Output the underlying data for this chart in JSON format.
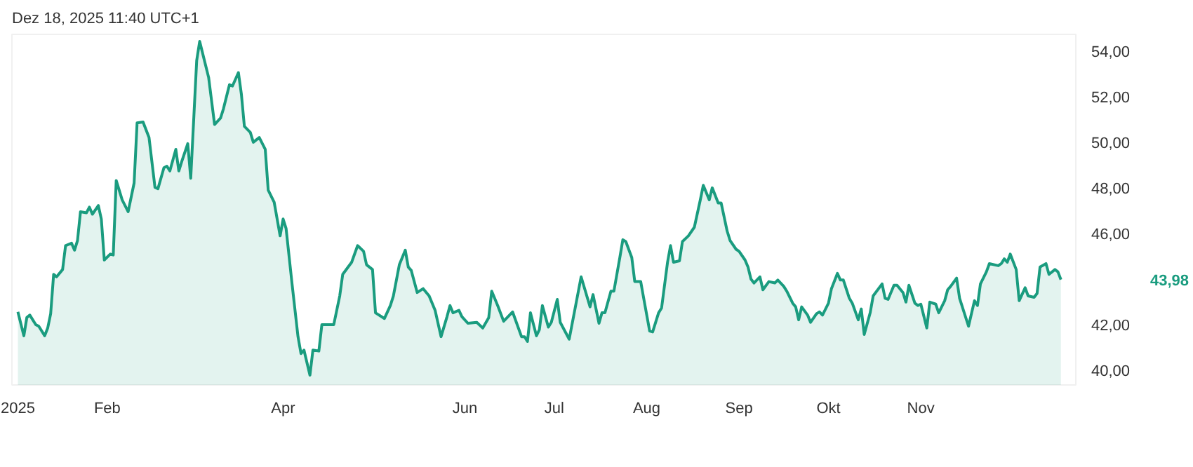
{
  "chart_data": {
    "type": "area",
    "title": "Dez 18, 2025 11:40 UTC+1",
    "x": [
      "2025-01-02",
      "2025-01-04",
      "2025-01-05",
      "2025-01-06",
      "2025-01-08",
      "2025-01-09",
      "2025-01-11",
      "2025-01-12",
      "2025-01-13",
      "2025-01-14",
      "2025-01-15",
      "2025-01-17",
      "2025-01-18",
      "2025-01-20",
      "2025-01-21",
      "2025-01-22",
      "2025-01-23",
      "2025-01-25",
      "2025-01-26",
      "2025-01-27",
      "2025-01-29",
      "2025-01-30",
      "2025-01-31",
      "2025-02-02",
      "2025-02-03",
      "2025-02-04",
      "2025-02-06",
      "2025-02-08",
      "2025-02-10",
      "2025-02-11",
      "2025-02-13",
      "2025-02-15",
      "2025-02-17",
      "2025-02-18",
      "2025-02-20",
      "2025-02-21",
      "2025-02-22",
      "2025-02-24",
      "2025-02-25",
      "2025-02-26",
      "2025-02-28",
      "2025-03-01",
      "2025-03-03",
      "2025-03-04",
      "2025-03-06",
      "2025-03-07",
      "2025-03-09",
      "2025-03-11",
      "2025-03-12",
      "2025-03-14",
      "2025-03-15",
      "2025-03-17",
      "2025-03-18",
      "2025-03-19",
      "2025-03-21",
      "2025-03-22",
      "2025-03-24",
      "2025-03-26",
      "2025-03-27",
      "2025-03-29",
      "2025-03-31",
      "2025-04-01",
      "2025-04-02",
      "2025-04-04",
      "2025-04-06",
      "2025-04-07",
      "2025-04-08",
      "2025-04-10",
      "2025-04-11",
      "2025-04-13",
      "2025-04-14",
      "2025-04-18",
      "2025-04-20",
      "2025-04-21",
      "2025-04-24",
      "2025-04-26",
      "2025-04-28",
      "2025-04-29",
      "2025-05-01",
      "2025-05-02",
      "2025-05-05",
      "2025-05-07",
      "2025-05-08",
      "2025-05-10",
      "2025-05-12",
      "2025-05-13",
      "2025-05-14",
      "2025-05-16",
      "2025-05-18",
      "2025-05-20",
      "2025-05-22",
      "2025-05-24",
      "2025-05-26",
      "2025-05-27",
      "2025-05-28",
      "2025-05-30",
      "2025-05-31",
      "2025-06-02",
      "2025-06-05",
      "2025-06-07",
      "2025-06-09",
      "2025-06-10",
      "2025-06-12",
      "2025-06-14",
      "2025-06-17",
      "2025-06-20",
      "2025-06-21",
      "2025-06-22",
      "2025-06-23",
      "2025-06-25",
      "2025-06-26",
      "2025-06-27",
      "2025-06-29",
      "2025-06-30",
      "2025-07-02",
      "2025-07-03",
      "2025-07-06",
      "2025-07-08",
      "2025-07-10",
      "2025-07-13",
      "2025-07-14",
      "2025-07-16",
      "2025-07-17",
      "2025-07-18",
      "2025-07-20",
      "2025-07-21",
      "2025-07-23",
      "2025-07-24",
      "2025-07-25",
      "2025-07-27",
      "2025-07-28",
      "2025-07-30",
      "2025-07-31",
      "2025-08-02",
      "2025-08-03",
      "2025-08-05",
      "2025-08-06",
      "2025-08-08",
      "2025-08-09",
      "2025-08-10",
      "2025-08-12",
      "2025-08-13",
      "2025-08-15",
      "2025-08-17",
      "2025-08-19",
      "2025-08-20",
      "2025-08-22",
      "2025-08-23",
      "2025-08-25",
      "2025-08-26",
      "2025-08-28",
      "2025-08-29",
      "2025-08-31",
      "2025-09-01",
      "2025-09-03",
      "2025-09-04",
      "2025-09-05",
      "2025-09-06",
      "2025-09-08",
      "2025-09-09",
      "2025-09-11",
      "2025-09-13",
      "2025-09-14",
      "2025-09-16",
      "2025-09-17",
      "2025-09-19",
      "2025-09-20",
      "2025-09-21",
      "2025-09-22",
      "2025-09-24",
      "2025-09-25",
      "2025-09-27",
      "2025-09-28",
      "2025-09-29",
      "2025-10-01",
      "2025-10-02",
      "2025-10-04",
      "2025-10-05",
      "2025-10-06",
      "2025-10-08",
      "2025-10-09",
      "2025-10-11",
      "2025-10-12",
      "2025-10-13",
      "2025-10-15",
      "2025-10-16",
      "2025-10-19",
      "2025-10-20",
      "2025-10-21",
      "2025-10-23",
      "2025-10-24",
      "2025-10-26",
      "2025-10-27",
      "2025-10-28",
      "2025-10-30",
      "2025-10-31",
      "2025-11-01",
      "2025-11-03",
      "2025-11-04",
      "2025-11-06",
      "2025-11-07",
      "2025-11-09",
      "2025-11-10",
      "2025-11-11",
      "2025-11-13",
      "2025-11-14",
      "2025-11-17",
      "2025-11-19",
      "2025-11-20",
      "2025-11-21",
      "2025-11-23",
      "2025-11-24",
      "2025-11-27",
      "2025-11-28",
      "2025-11-29",
      "2025-11-30",
      "2025-12-01",
      "2025-12-03",
      "2025-12-04",
      "2025-12-06",
      "2025-12-07",
      "2025-12-09",
      "2025-12-10",
      "2025-12-11",
      "2025-12-13",
      "2025-12-14",
      "2025-12-16",
      "2025-12-17",
      "2025-12-18"
    ],
    "series": [
      {
        "color": "#1a9c7f",
        "values": [
          42.56,
          41.51,
          42.31,
          42.42,
          42.0,
          41.93,
          41.51,
          41.85,
          42.48,
          44.21,
          44.1,
          44.42,
          45.47,
          45.58,
          45.27,
          45.69,
          46.96,
          46.91,
          47.16,
          46.85,
          47.23,
          46.64,
          44.84,
          45.1,
          45.06,
          48.33,
          47.48,
          46.96,
          48.22,
          50.86,
          50.9,
          50.22,
          48.03,
          47.97,
          48.89,
          48.96,
          48.75,
          49.7,
          48.75,
          49.17,
          49.95,
          48.43,
          53.6,
          54.44,
          53.39,
          52.86,
          50.79,
          51.07,
          51.49,
          52.54,
          52.48,
          53.07,
          52.12,
          50.71,
          50.44,
          50.01,
          50.22,
          49.7,
          47.91,
          47.38,
          45.9,
          46.64,
          46.22,
          43.79,
          41.47,
          40.73,
          40.88,
          39.78,
          40.88,
          40.84,
          42.0,
          42.0,
          43.26,
          44.21,
          44.74,
          45.47,
          45.22,
          44.63,
          44.42,
          42.52,
          42.27,
          42.84,
          43.26,
          44.63,
          45.27,
          44.53,
          44.38,
          43.41,
          43.58,
          43.26,
          42.63,
          41.47,
          42.35,
          42.84,
          42.52,
          42.63,
          42.35,
          42.06,
          42.1,
          41.85,
          42.31,
          43.47,
          42.84,
          42.15,
          42.56,
          41.47,
          41.47,
          41.26,
          42.52,
          41.51,
          41.78,
          42.84,
          41.89,
          42.1,
          43.11,
          42.1,
          41.36,
          42.73,
          44.1,
          42.78,
          43.32,
          42.06,
          42.52,
          42.52,
          43.47,
          43.47,
          44.95,
          45.73,
          45.65,
          44.95,
          43.89,
          43.89,
          43.16,
          41.72,
          41.68,
          42.52,
          42.73,
          44.74,
          45.47,
          44.74,
          44.8,
          45.65,
          45.9,
          46.28,
          47.48,
          48.12,
          47.48,
          48.01,
          47.34,
          47.34,
          46.11,
          45.69,
          45.31,
          45.22,
          44.84,
          44.53,
          44.0,
          43.83,
          44.1,
          43.53,
          43.89,
          43.83,
          43.96,
          43.68,
          43.47,
          42.94,
          42.78,
          42.21,
          42.78,
          42.42,
          42.1,
          42.48,
          42.56,
          42.42,
          42.94,
          43.58,
          44.25,
          43.96,
          43.96,
          43.16,
          42.94,
          42.21,
          42.69,
          41.57,
          42.52,
          43.26,
          43.79,
          43.16,
          43.11,
          43.73,
          43.73,
          43.41,
          42.99,
          43.73,
          42.94,
          42.84,
          42.9,
          41.85,
          42.99,
          42.9,
          42.52,
          43.05,
          43.53,
          43.68,
          44.04,
          43.16,
          41.93,
          43.05,
          42.84,
          43.79,
          44.32,
          44.68,
          44.59,
          44.68,
          44.89,
          44.74,
          45.1,
          44.42,
          43.05,
          43.62,
          43.26,
          43.2,
          43.37,
          44.53,
          44.68,
          44.21,
          44.42,
          44.32,
          43.98
        ]
      }
    ],
    "xlim": [
      "2024-12-31",
      "2025-12-23"
    ],
    "xticks": [
      {
        "value": "2025-01-01",
        "label": "2025"
      },
      {
        "value": "2025-02-01",
        "label": "Feb"
      },
      {
        "value": "2025-04-01",
        "label": "Apr"
      },
      {
        "value": "2025-06-01",
        "label": "Jun"
      },
      {
        "value": "2025-07-01",
        "label": "Jul"
      },
      {
        "value": "2025-08-01",
        "label": "Aug"
      },
      {
        "value": "2025-09-01",
        "label": "Sep"
      },
      {
        "value": "2025-10-01",
        "label": "Okt"
      },
      {
        "value": "2025-11-01",
        "label": "Nov"
      }
    ],
    "ylim": [
      39.35,
      54.75
    ],
    "yticks": [
      {
        "value": 40,
        "label": "40,00"
      },
      {
        "value": 42,
        "label": "42,00"
      },
      {
        "value": 46,
        "label": "46,00"
      },
      {
        "value": 48,
        "label": "48,00"
      },
      {
        "value": 50,
        "label": "50,00"
      },
      {
        "value": 52,
        "label": "52,00"
      },
      {
        "value": 54,
        "label": "54,00"
      }
    ],
    "grid": false,
    "annotations": [
      "43,98"
    ]
  }
}
